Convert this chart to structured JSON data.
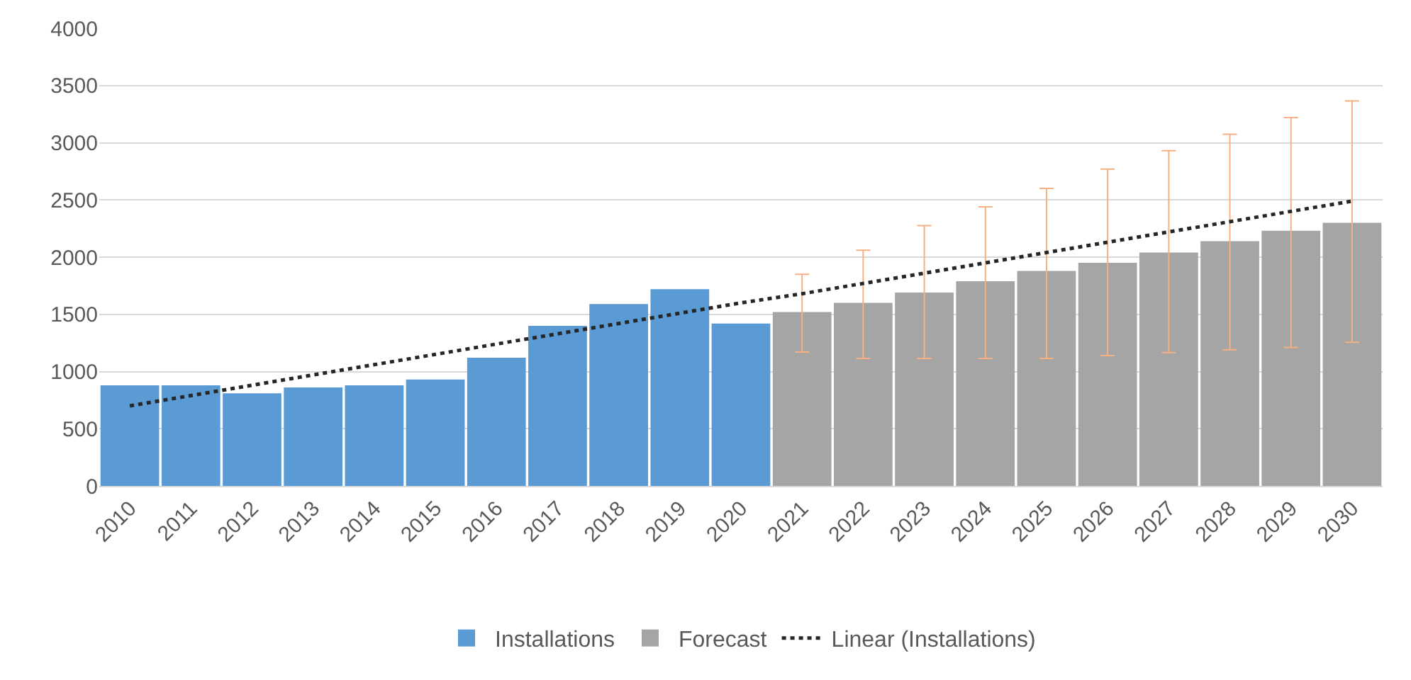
{
  "chart_data": {
    "type": "bar",
    "categories": [
      "2010",
      "2011",
      "2012",
      "2013",
      "2014",
      "2015",
      "2016",
      "2017",
      "2018",
      "2019",
      "2020",
      "2021",
      "2022",
      "2023",
      "2024",
      "2025",
      "2026",
      "2027",
      "2028",
      "2029",
      "2030"
    ],
    "series": [
      {
        "name": "Installations",
        "color": "#5b9bd5",
        "values": [
          880,
          880,
          810,
          860,
          880,
          930,
          1120,
          1400,
          1590,
          1720,
          1420,
          null,
          null,
          null,
          null,
          null,
          null,
          null,
          null,
          null,
          null
        ]
      },
      {
        "name": "Forecast",
        "color": "#a5a5a5",
        "values": [
          null,
          null,
          null,
          null,
          null,
          null,
          null,
          null,
          null,
          null,
          null,
          1520,
          1600,
          1690,
          1790,
          1880,
          1950,
          2040,
          2140,
          2230,
          2300
        ],
        "errors": [
          null,
          null,
          null,
          null,
          null,
          null,
          null,
          null,
          null,
          null,
          null,
          [
            1170,
            1850
          ],
          [
            1115,
            2060
          ],
          [
            1115,
            2275
          ],
          [
            1115,
            2440
          ],
          [
            1115,
            2600
          ],
          [
            1140,
            2770
          ],
          [
            1165,
            2930
          ],
          [
            1190,
            3075
          ],
          [
            1210,
            3220
          ],
          [
            1255,
            3365
          ]
        ]
      },
      {
        "name": "Linear (Installations)",
        "type": "line",
        "color": "#262626",
        "line_style": "dotted",
        "marker": "none",
        "values": [
          700,
          790,
          880,
          970,
          1060,
          1150,
          1240,
          1330,
          1420,
          1510,
          1600,
          1680,
          1770,
          1860,
          1950,
          2040,
          2130,
          2220,
          2310,
          2400,
          2490
        ]
      }
    ],
    "ylim": [
      0,
      4000
    ],
    "yticks": [
      0,
      500,
      1000,
      1500,
      2000,
      2500,
      3000,
      3500,
      4000
    ],
    "grid": "y",
    "legend": "bottom"
  }
}
